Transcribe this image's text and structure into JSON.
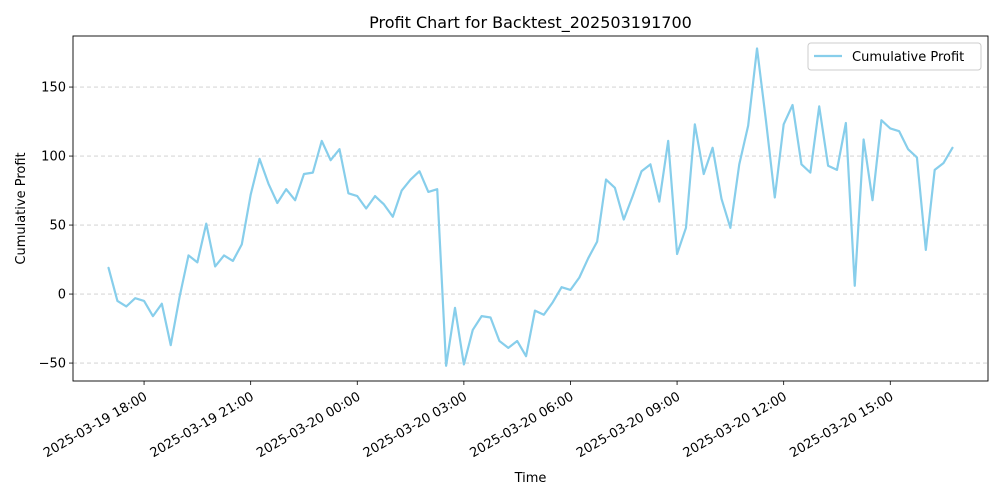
{
  "chart_data": {
    "type": "line",
    "title": "Profit Chart for Backtest_202503191700",
    "xlabel": "Time",
    "ylabel": "Cumulative Profit",
    "x_start": "2025-03-19 17:00",
    "x_step_minutes": 15,
    "xlim": [
      "2025-03-19 16:00",
      "2025-03-20 17:45"
    ],
    "ylim": [
      -63,
      187
    ],
    "x_ticks": [
      "2025-03-19 18:00",
      "2025-03-19 21:00",
      "2025-03-20 00:00",
      "2025-03-20 03:00",
      "2025-03-20 06:00",
      "2025-03-20 09:00",
      "2025-03-20 12:00",
      "2025-03-20 15:00"
    ],
    "y_ticks": [
      -50,
      0,
      50,
      100,
      150
    ],
    "grid": "y-dashed",
    "legend_position": "top-right",
    "color": "#87ceeb",
    "series": [
      {
        "name": "Cumulative Profit",
        "values": [
          19,
          -5,
          -9,
          -3,
          -5,
          -16,
          -7,
          -37,
          -2,
          28,
          23,
          51,
          20,
          28,
          24,
          36,
          72,
          98,
          80,
          66,
          76,
          68,
          87,
          88,
          111,
          97,
          105,
          73,
          71,
          62,
          71,
          65,
          56,
          75,
          83,
          89,
          74,
          76,
          -52,
          -10,
          -51,
          -26,
          -16,
          -17,
          -34,
          -39,
          -34,
          -45,
          -12,
          -15,
          -6,
          5,
          3,
          12,
          26,
          38,
          83,
          77,
          54,
          71,
          89,
          94,
          67,
          111,
          29,
          48,
          123,
          87,
          106,
          69,
          48,
          94,
          122,
          178,
          126,
          70,
          123,
          137,
          94,
          88,
          136,
          93,
          90,
          124,
          6,
          112,
          68,
          126,
          120,
          118,
          105,
          99,
          32,
          90,
          95,
          106
        ]
      }
    ]
  }
}
